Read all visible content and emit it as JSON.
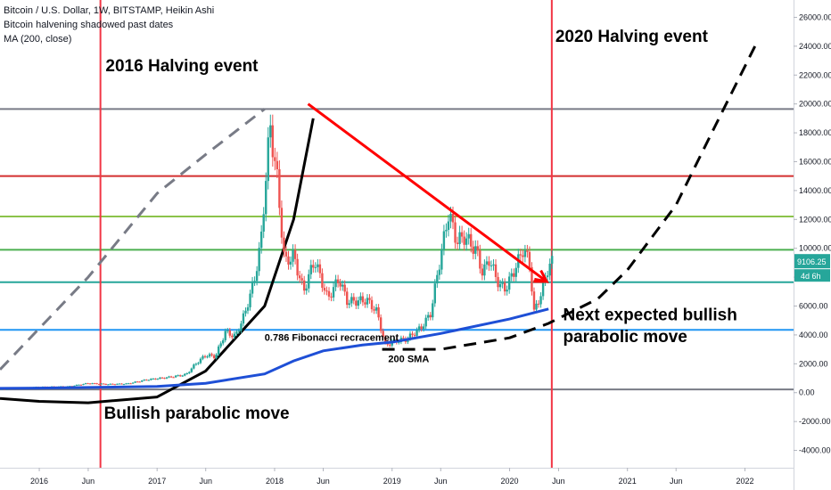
{
  "header": {
    "title": "Bitcoin / U.S. Dollar, 1W, BITSTAMP, Heikin Ashi",
    "indicator_1": "Bitcoin halvening shadowed past dates",
    "indicator_2": "MA (200, close)"
  },
  "colors": {
    "bull_candle": "#26a69a",
    "bear_candle": "#ef5350",
    "ma_line": "#1e4fd6",
    "halving_line": "#f23645",
    "trend_arrow": "#ff0000",
    "gray_level": "#787b86",
    "red_level": "#d32f2f",
    "lime_level": "#8bc34a",
    "green_level": "#4caf50",
    "teal_level": "#26a69a",
    "blue_level": "#2196f3"
  },
  "chart_data": {
    "type": "candlestick",
    "title": "Bitcoin / U.S. Dollar, 1W, BITSTAMP, Heikin Ashi",
    "y_axis": {
      "ticks": [
        -4000,
        -2000,
        0,
        2000,
        4000,
        6000,
        8000,
        10000,
        12000,
        14000,
        16000,
        18000,
        20000,
        22000,
        24000,
        26000
      ],
      "tick_labels": [
        "-4000.00",
        "-2000.00",
        "0.00",
        "2000.00",
        "4000.00",
        "6000.00",
        "8000.00",
        "10000.00",
        "12000.00",
        "14000.00",
        "16000.00",
        "18000.00",
        "20000.00",
        "22000.00",
        "24000.00",
        "26000.00"
      ],
      "ylim": [
        -5200,
        27200
      ]
    },
    "x_axis": {
      "tick_dates": [
        "2016-01",
        "2016-06",
        "2017-01",
        "2017-06",
        "2018-01",
        "2018-06",
        "2019-01",
        "2019-06",
        "2020-01",
        "2020-06",
        "2021-01",
        "2021-06",
        "2022-01"
      ],
      "tick_labels": [
        "2016",
        "Jun",
        "2017",
        "Jun",
        "2018",
        "Jun",
        "2019",
        "Jun",
        "2020",
        "Jun",
        "2021",
        "Jun",
        "2022"
      ],
      "xlim": [
        "2015-09",
        "2022-06"
      ]
    },
    "last_price": "9106.25",
    "countdown": "4d 6h",
    "price_path": [
      [
        "2015-09",
        230
      ],
      [
        "2015-11",
        330
      ],
      [
        "2016-01",
        400
      ],
      [
        "2016-04",
        430
      ],
      [
        "2016-06",
        650
      ],
      [
        "2016-08",
        580
      ],
      [
        "2016-10",
        620
      ],
      [
        "2016-12",
        900
      ],
      [
        "2017-02",
        1050
      ],
      [
        "2017-04",
        1250
      ],
      [
        "2017-05",
        2000
      ],
      [
        "2017-06",
        2600
      ],
      [
        "2017-07",
        2500
      ],
      [
        "2017-08",
        4200
      ],
      [
        "2017-09",
        3900
      ],
      [
        "2017-10",
        5500
      ],
      [
        "2017-11",
        8000
      ],
      [
        "2017-11-20",
        10500
      ],
      [
        "2017-12-05",
        15000
      ],
      [
        "2017-12-18",
        18500
      ],
      [
        "2018-01-08",
        15000
      ],
      [
        "2018-02-01",
        9000
      ],
      [
        "2018-03-01",
        9500
      ],
      [
        "2018-04-01",
        7000
      ],
      [
        "2018-05-05",
        9200
      ],
      [
        "2018-06-15",
        6500
      ],
      [
        "2018-07-20",
        7900
      ],
      [
        "2018-08-15",
        6300
      ],
      [
        "2018-10-15",
        6400
      ],
      [
        "2018-11-15",
        5600
      ],
      [
        "2018-12-10",
        3300
      ],
      [
        "2019-01-15",
        3600
      ],
      [
        "2019-02-15",
        3700
      ],
      [
        "2019-04-01",
        4500
      ],
      [
        "2019-05-01",
        5500
      ],
      [
        "2019-05-20",
        8000
      ],
      [
        "2019-06-26",
        12500
      ],
      [
        "2019-07-20",
        10500
      ],
      [
        "2019-08-15",
        10800
      ],
      [
        "2019-09-20",
        9800
      ],
      [
        "2019-10-10",
        8200
      ],
      [
        "2019-10-28",
        9300
      ],
      [
        "2019-12-01",
        7400
      ],
      [
        "2019-12-20",
        7200
      ],
      [
        "2020-01-20",
        8700
      ],
      [
        "2020-02-13",
        10000
      ],
      [
        "2020-03-05",
        8800
      ],
      [
        "2020-03-16",
        5500
      ],
      [
        "2020-04-10",
        7000
      ],
      [
        "2020-05-01",
        8800
      ],
      [
        "2020-05-15",
        9100
      ]
    ],
    "ma_200": [
      [
        "2015-09",
        300
      ],
      [
        "2016-01",
        320
      ],
      [
        "2016-06",
        360
      ],
      [
        "2017-01",
        430
      ],
      [
        "2017-06",
        650
      ],
      [
        "2017-12",
        1300
      ],
      [
        "2018-03",
        2200
      ],
      [
        "2018-06",
        2900
      ],
      [
        "2018-10",
        3300
      ],
      [
        "2019-01",
        3500
      ],
      [
        "2019-06",
        4100
      ],
      [
        "2020-01",
        5100
      ],
      [
        "2020-05",
        5800
      ]
    ],
    "horizontal_levels": [
      {
        "price": 19650,
        "color_key": "gray_level"
      },
      {
        "price": 15000,
        "color_key": "red_level"
      },
      {
        "price": 12200,
        "color_key": "lime_level"
      },
      {
        "price": 9900,
        "color_key": "green_level"
      },
      {
        "price": 7650,
        "color_key": "teal_level"
      },
      {
        "price": 4350,
        "color_key": "blue_level"
      },
      {
        "price": 220,
        "color_key": "gray_level"
      }
    ],
    "halving_dates": [
      "2016-07-09",
      "2020-05-11"
    ],
    "annotations": [
      {
        "text": "2016 Halving event",
        "date": "2016-07-25",
        "price": 22250,
        "size": "large"
      },
      {
        "text": "2020 Halving event",
        "date": "2020-05-22",
        "price": 24300,
        "size": "large"
      },
      {
        "text": "Bullish parabolic move",
        "date": "2016-07-20",
        "price": -1800,
        "size": "large"
      },
      {
        "text": "Next expected bullish",
        "date": "2020-06-15",
        "price": 5000,
        "size": "large"
      },
      {
        "text": "parabolic move",
        "date": "2020-06-15",
        "price": 3500,
        "size": "large"
      },
      {
        "text": "0.786 Fibonacci recracement",
        "date": "2017-12-01",
        "price": 3600,
        "size": "small"
      },
      {
        "text": "200 SMA",
        "date": "2018-12-20",
        "price": 2100,
        "size": "small"
      }
    ],
    "trend_arrow": {
      "from": [
        "2018-04-15",
        20000
      ],
      "to": [
        "2020-04-25",
        7700
      ]
    },
    "short_arrow": {
      "from": [
        "2020-03-15",
        7700
      ],
      "to": [
        "2020-04-25",
        7700
      ]
    },
    "projection_curves": [
      {
        "style": "dashed",
        "color_key": "gray_level",
        "points": [
          [
            "2015-09",
            1600
          ],
          [
            "2016-06",
            8000
          ],
          [
            "2017-01",
            13800
          ],
          [
            "2017-06",
            16500
          ],
          [
            "2017-12",
            19650
          ]
        ]
      },
      {
        "style": "solid",
        "color": "#000000",
        "points": [
          [
            "2015-09",
            -400
          ],
          [
            "2016-01",
            -600
          ],
          [
            "2016-06",
            -700
          ],
          [
            "2017-01",
            -300
          ],
          [
            "2017-06",
            1500
          ],
          [
            "2017-12",
            6000
          ],
          [
            "2018-03",
            12000
          ],
          [
            "2018-05",
            19000
          ]
        ]
      },
      {
        "style": "dashed",
        "color": "#000000",
        "points": [
          [
            "2018-12",
            3000
          ],
          [
            "2019-06",
            3000
          ],
          [
            "2020-01",
            3800
          ],
          [
            "2020-05",
            4800
          ],
          [
            "2020-10",
            6500
          ],
          [
            "2021-01",
            8500
          ],
          [
            "2021-06",
            13000
          ],
          [
            "2021-10",
            18500
          ],
          [
            "2022-02",
            24000
          ]
        ]
      }
    ]
  }
}
